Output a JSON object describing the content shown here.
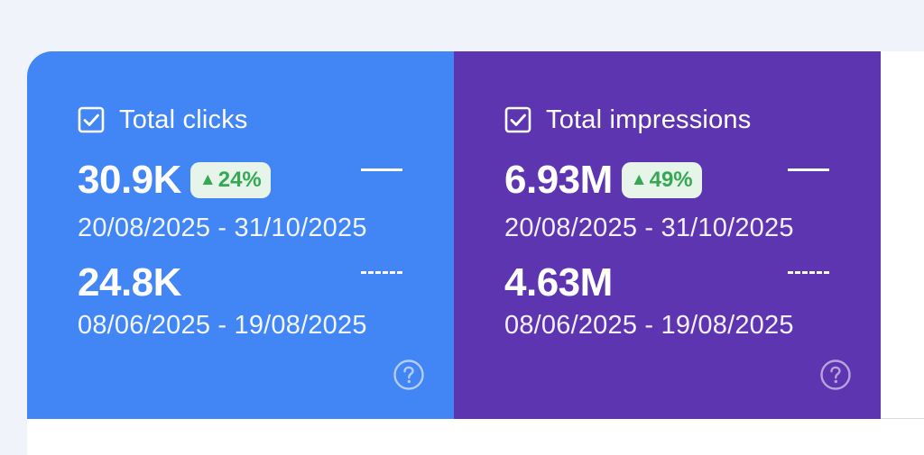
{
  "clicks": {
    "label": "Total clicks",
    "value": "30.9K",
    "change": "24%",
    "current_range": "20/08/2025 - 31/10/2025",
    "previous_value": "24.8K",
    "previous_range": "08/06/2025 - 19/08/2025",
    "checked": true,
    "color": "#4285f4"
  },
  "impressions": {
    "label": "Total impressions",
    "value": "6.93M",
    "change": "49%",
    "current_range": "20/08/2025 - 31/10/2025",
    "previous_value": "4.63M",
    "previous_range": "08/06/2025 - 19/08/2025",
    "checked": true,
    "color": "#5e35b1"
  },
  "colors": {
    "positive_change": "#34a853",
    "positive_change_bg": "#e6f4ea",
    "background": "#f0f3f9"
  },
  "icons": [
    "checkbox-checked-icon",
    "triangle-up-icon",
    "solid-line-legend-icon",
    "dashed-line-legend-icon",
    "help-icon"
  ]
}
